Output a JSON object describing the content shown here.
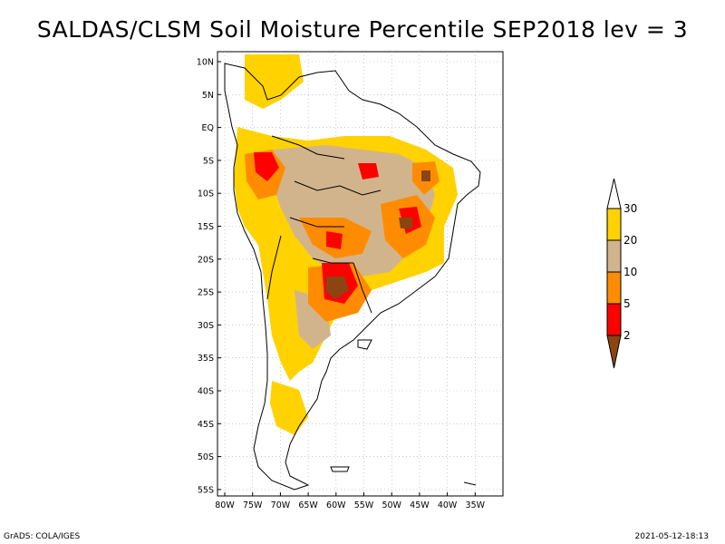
{
  "title": "SALDAS/CLSM Soil Moisture Percentile SEP2018 lev = 3",
  "footer": {
    "left": "GrADS: COLA/IGES",
    "right": "2021-05-12-18:13"
  },
  "lat_labels": [
    "10N",
    "5N",
    "EQ",
    "5S",
    "10S",
    "15S",
    "20S",
    "25S",
    "30S",
    "35S",
    "40S",
    "45S",
    "50S",
    "55S"
  ],
  "lon_labels": [
    "80W",
    "75W",
    "70W",
    "65W",
    "60W",
    "55W",
    "50W",
    "45W",
    "40W",
    "35W"
  ],
  "colorbar": {
    "labels": [
      "30",
      "20",
      "10",
      "5",
      "2"
    ],
    "colors": [
      "#ffffff",
      "#ffd200",
      "#d2b48c",
      "#ff8c00",
      "#ff0000",
      "#8b4513"
    ]
  },
  "colors": {
    "land_bg": "#ffffff",
    "coast": "#000000",
    "grid": "#aaaaaa"
  }
}
